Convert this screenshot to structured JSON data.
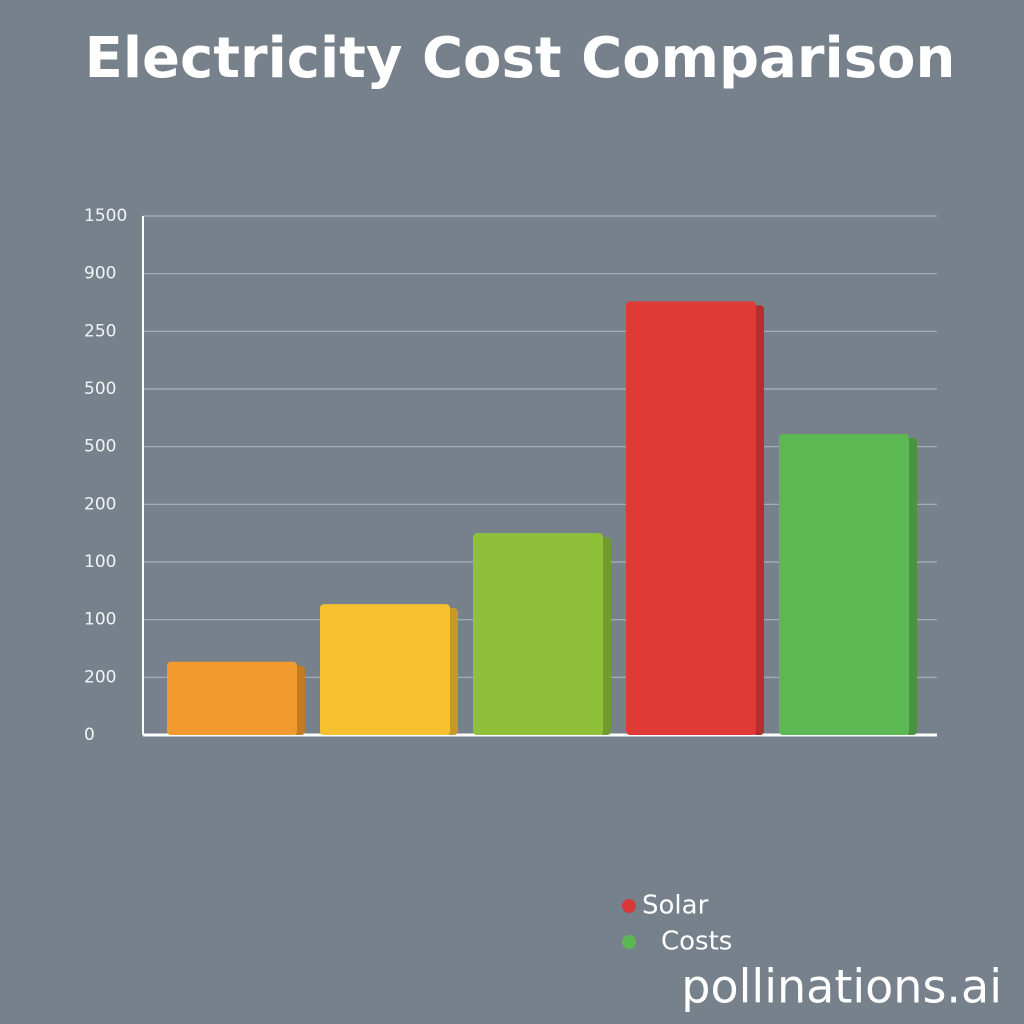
{
  "chart_data": {
    "type": "bar",
    "title": "Electricity Cost Comparison",
    "categories": [
      null,
      null,
      null,
      null,
      null
    ],
    "values": [
      1.27,
      2.27,
      3.5,
      7.52,
      5.22
    ],
    "colors": [
      "#f29a2e",
      "#f7c02f",
      "#8fc03a",
      "#e03a37",
      "#5cb852"
    ],
    "ylim": [
      0,
      9
    ],
    "yticks": [
      0,
      {
        "value": 1,
        "label": "200"
      },
      {
        "value": 2,
        "label": "100"
      },
      {
        "value": 3,
        "label": "100"
      },
      {
        "value": 4,
        "label": "200"
      },
      {
        "value": 5,
        "label": "500"
      },
      {
        "value": 6,
        "label": "500"
      },
      {
        "value": 7,
        "label": "250"
      },
      {
        "value": 8,
        "label": "900"
      },
      {
        "value": 9,
        "label": "1500"
      }
    ],
    "grid": true,
    "legend": [
      {
        "name": "Solar",
        "color": "#d8383a"
      },
      {
        "name": "Costs",
        "color": "#5cb852"
      }
    ],
    "legend_position": "lower right",
    "watermark": "pollinations.ai"
  }
}
